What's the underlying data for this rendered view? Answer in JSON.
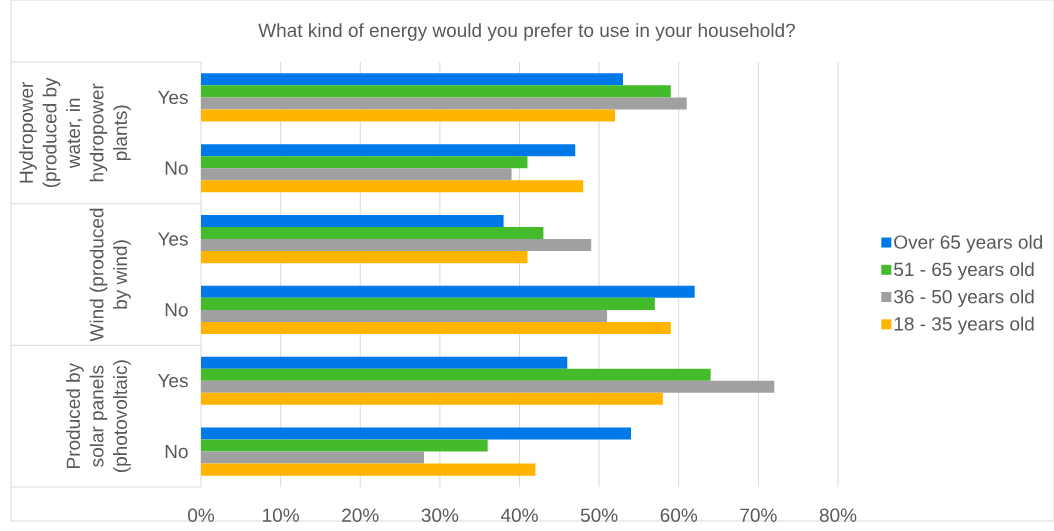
{
  "chart_data": {
    "type": "bar",
    "orientation": "horizontal",
    "title": "What kind of energy would you prefer to use in your household?",
    "categories": [
      "Yes",
      "No",
      "Yes",
      "No",
      "Yes",
      "No"
    ],
    "annotations": [
      "Hydropower (produced by water, in hydropower plants)",
      "Wind (produced by wind)",
      "Produced by solar panels (photovoltaic)"
    ],
    "series": [
      {
        "name": "Over 65 years old",
        "color": "#0078e7",
        "values": [
          53,
          47,
          38,
          62,
          46,
          54
        ]
      },
      {
        "name": "51 - 65 years old",
        "color": "#44bb2b",
        "values": [
          59,
          41,
          43,
          57,
          64,
          36
        ]
      },
      {
        "name": "36 - 50 years old",
        "color": "#a0a0a0",
        "values": [
          61,
          39,
          49,
          51,
          72,
          28
        ]
      },
      {
        "name": "18 - 35 years old",
        "color": "#ffb400",
        "values": [
          52,
          48,
          41,
          59,
          58,
          42
        ]
      }
    ],
    "xlim": [
      0,
      80
    ],
    "xticks": [
      {
        "value": 0,
        "label": "0%"
      },
      {
        "value": 10,
        "label": "10%"
      },
      {
        "value": 20,
        "label": "20%"
      },
      {
        "value": 30,
        "label": "30%"
      },
      {
        "value": 40,
        "label": "40%"
      },
      {
        "value": 50,
        "label": "50%"
      },
      {
        "value": 60,
        "label": "60%"
      },
      {
        "value": 70,
        "label": "70%"
      },
      {
        "value": 80,
        "label": "80%"
      }
    ],
    "grid": "x",
    "legend": "right"
  }
}
